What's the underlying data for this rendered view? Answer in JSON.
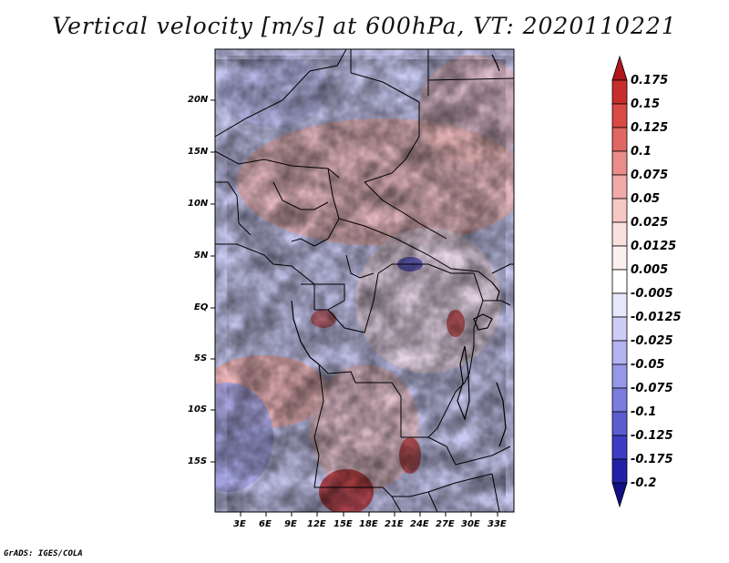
{
  "title": "Vertical velocity [m/s] at 600hPa, VT: 2020110221",
  "footer": "GrADS: IGES/COLA",
  "map": {
    "variable": "Vertical velocity",
    "level": "600hPa",
    "units": "m/s",
    "valid_time": "2020110221",
    "lon_labels": [
      "3E",
      "6E",
      "9E",
      "12E",
      "15E",
      "18E",
      "21E",
      "24E",
      "27E",
      "30E",
      "33E"
    ],
    "lat_labels": [
      "20N",
      "15N",
      "10N",
      "5N",
      "EQ",
      "5S",
      "10S",
      "15S"
    ]
  },
  "colorbar": {
    "labels": [
      "0.175",
      "0.15",
      "0.125",
      "0.1",
      "0.075",
      "0.05",
      "0.025",
      "0.0125",
      "0.005",
      "-0.005",
      "-0.0125",
      "-0.025",
      "-0.05",
      "-0.075",
      "-0.1",
      "-0.125",
      "-0.175",
      "-0.2"
    ],
    "colors": [
      "#b2171c",
      "#c82d2d",
      "#d94a45",
      "#e06763",
      "#ea8d8a",
      "#f0aaa7",
      "#f5c8c6",
      "#fae1e0",
      "#fdf1f0",
      "#ffffff",
      "#e7e7fb",
      "#cdcdf6",
      "#b3b3f0",
      "#9797e8",
      "#7c7cde",
      "#5d5dd2",
      "#3d3dc4",
      "#2222a6",
      "#120f85"
    ]
  }
}
